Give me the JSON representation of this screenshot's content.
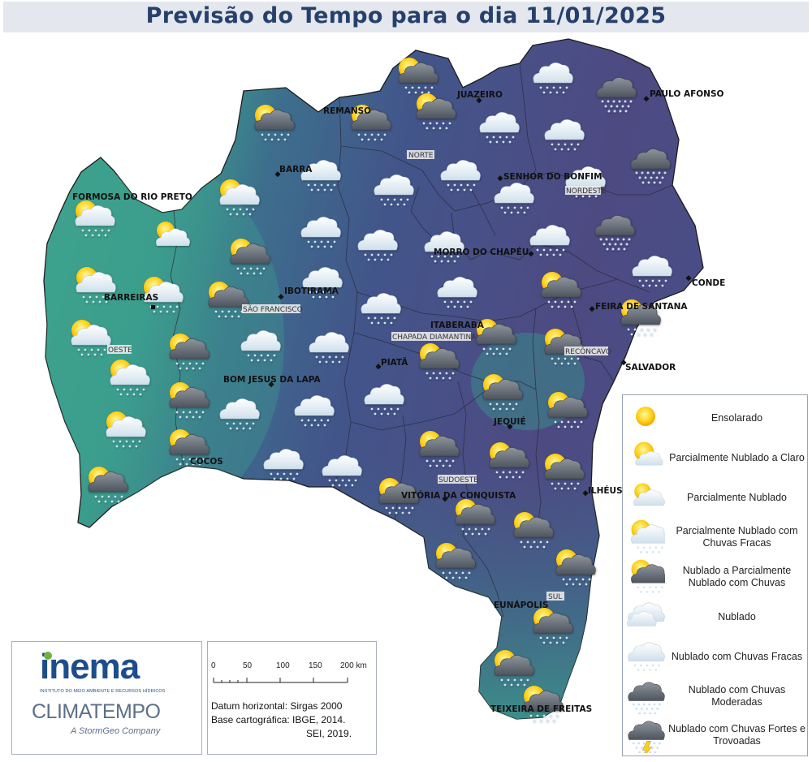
{
  "title": "Previsão do Tempo para o dia 11/01/2025",
  "colors": {
    "region_west": "#3d9e8c",
    "region_center": "#3f5a8a",
    "region_northeast": "#4a4a82",
    "border": "#333333",
    "title_text": "#27406b"
  },
  "cities": {
    "formosa": "FORMOSA DO RIO PRETO",
    "barreiras": "BARREIRAS",
    "remanso": "REMANSO",
    "juazeiro": "JUAZEIRO",
    "paulo_afonso": "PAULO AFONSO",
    "barra": "BARRA",
    "senhor_bonfim": "SENHOR DO BONFIM",
    "ibotirama": "IBOTIRAMA",
    "morro_chapeu": "MORRO DO CHAPÉU",
    "conde": "CONDE",
    "itaberaba": "ITABERABA",
    "feira": "FEIRA DE SANTANA",
    "piata": "PIATÃ",
    "salvador": "SALVADOR",
    "bom_jesus": "BOM JESUS DA LAPA",
    "jequie": "JEQUIÉ",
    "cocos": "COCOS",
    "ilheus": "ILHÉUS",
    "vitoria": "VITÓRIA DA CONQUISTA",
    "eunapolis": "EUNÁPOLIS",
    "teixeira": "TEIXEIRA DE FREITAS"
  },
  "regions": {
    "norte": "NORTE",
    "nordeste": "NORDESTE",
    "sao_francisco": "SÃO FRANCISCO",
    "oeste": "OESTE",
    "chapada": "CHAPADA DIAMANTINA",
    "reconcavo": "RECÔNCAVO",
    "sudoeste": "SUDOESTE",
    "sul": "SUL"
  },
  "legend": [
    {
      "icon": "sun-icon",
      "label": "Ensolarado"
    },
    {
      "icon": "sun-light-cloud-icon",
      "label": "Parcialmente Nublado a Claro"
    },
    {
      "icon": "sun-cloud-icon",
      "label": "Parcialmente Nublado"
    },
    {
      "icon": "sun-cloud-light-rain-icon",
      "label": "Parcialmente Nublado com Chuvas Fracas"
    },
    {
      "icon": "sun-dark-cloud-rain-icon",
      "label": "Nublado a Parcialmente Nublado com Chuvas"
    },
    {
      "icon": "cloud-icon",
      "label": "Nublado"
    },
    {
      "icon": "cloud-light-rain-icon",
      "label": "Nublado com Chuvas Fracas"
    },
    {
      "icon": "dark-cloud-rain-icon",
      "label": "Nublado com Chuvas Moderadas"
    },
    {
      "icon": "storm-cloud-icon",
      "label": "Nublado com Chuvas Fortes e Trovoadas"
    }
  ],
  "logos": {
    "inema": "inema",
    "inema_sub": "INSTITUTO DO MEIO AMBIENTE E RECURSOS HÍDRICOS",
    "climatempo": "CLIMATEMPO",
    "stormgeo": "A StormGeo Company"
  },
  "scale": {
    "ticks": [
      "0",
      "50",
      "100",
      "150",
      "200 km"
    ],
    "datum": "Datum horizontal: Sirgas 2000",
    "base": "Base cartográfica: IBGE, 2014.",
    "base2": "SEI, 2019."
  }
}
